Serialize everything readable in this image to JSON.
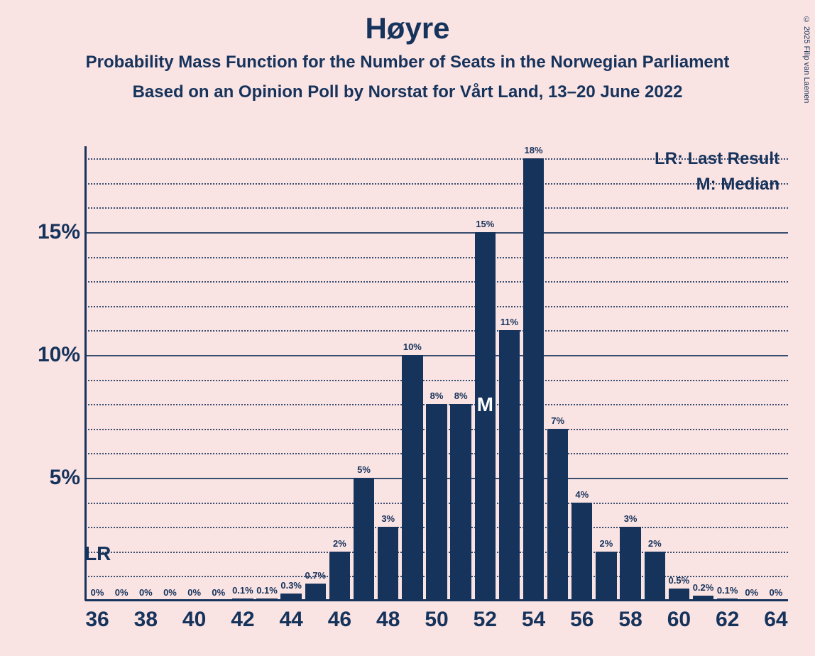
{
  "title": "Høyre",
  "subtitle": "Probability Mass Function for the Number of Seats in the Norwegian Parliament",
  "subtitle2": "Based on an Opinion Poll by Norstat for Vårt Land, 13–20 June 2022",
  "copyright": "© 2025 Filip van Laenen",
  "legend": {
    "lr": "LR: Last Result",
    "m": "M: Median"
  },
  "annotations": {
    "lr_label": "LR",
    "lr_seat": 36,
    "median_label": "M",
    "median_seat": 52
  },
  "chart": {
    "type": "bar",
    "background_color": "#fae3e3",
    "bar_color": "#16335b",
    "text_color": "#16335b",
    "grid_color": "#16335b",
    "ylim": [
      0,
      18.5
    ],
    "y_major_ticks": [
      5,
      10,
      15
    ],
    "y_major_labels": [
      "5%",
      "10%",
      "15%"
    ],
    "y_minor_step": 1,
    "x_range": [
      36,
      64
    ],
    "x_tick_step": 2,
    "bar_width_ratio": 0.86,
    "bars": [
      {
        "seat": 36,
        "value": 0,
        "label": "0%"
      },
      {
        "seat": 37,
        "value": 0,
        "label": "0%"
      },
      {
        "seat": 38,
        "value": 0,
        "label": "0%"
      },
      {
        "seat": 39,
        "value": 0,
        "label": "0%"
      },
      {
        "seat": 40,
        "value": 0,
        "label": "0%"
      },
      {
        "seat": 41,
        "value": 0,
        "label": "0%"
      },
      {
        "seat": 42,
        "value": 0.1,
        "label": "0.1%"
      },
      {
        "seat": 43,
        "value": 0.1,
        "label": "0.1%"
      },
      {
        "seat": 44,
        "value": 0.3,
        "label": "0.3%"
      },
      {
        "seat": 45,
        "value": 0.7,
        "label": "0.7%"
      },
      {
        "seat": 46,
        "value": 2,
        "label": "2%"
      },
      {
        "seat": 47,
        "value": 5,
        "label": "5%"
      },
      {
        "seat": 48,
        "value": 3,
        "label": "3%"
      },
      {
        "seat": 49,
        "value": 10,
        "label": "10%"
      },
      {
        "seat": 50,
        "value": 8,
        "label": "8%"
      },
      {
        "seat": 51,
        "value": 8,
        "label": "8%"
      },
      {
        "seat": 52,
        "value": 15,
        "label": "15%"
      },
      {
        "seat": 53,
        "value": 11,
        "label": "11%"
      },
      {
        "seat": 54,
        "value": 18,
        "label": "18%"
      },
      {
        "seat": 55,
        "value": 7,
        "label": "7%"
      },
      {
        "seat": 56,
        "value": 4,
        "label": "4%"
      },
      {
        "seat": 57,
        "value": 2,
        "label": "2%"
      },
      {
        "seat": 58,
        "value": 3,
        "label": "3%"
      },
      {
        "seat": 59,
        "value": 2,
        "label": "2%"
      },
      {
        "seat": 60,
        "value": 0.5,
        "label": "0.5%"
      },
      {
        "seat": 61,
        "value": 0.2,
        "label": "0.2%"
      },
      {
        "seat": 62,
        "value": 0.1,
        "label": "0.1%"
      },
      {
        "seat": 63,
        "value": 0,
        "label": "0%"
      },
      {
        "seat": 64,
        "value": 0,
        "label": "0%"
      }
    ]
  }
}
